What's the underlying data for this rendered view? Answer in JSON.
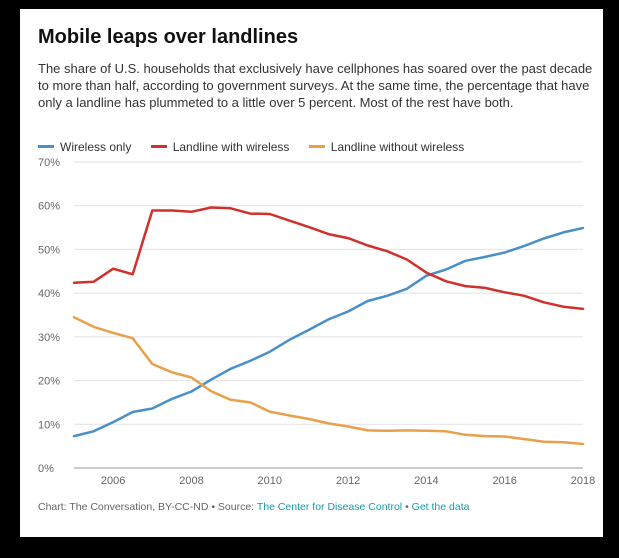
{
  "title": "Mobile leaps over landlines",
  "subtitle": "The share of U.S. households that exclusively have cellphones has soared over the past decade to more than half, according to government surveys. At the same time, the percentage that have only a landline has plummeted to a little over 5 percent. Most of the rest have both.",
  "footer": {
    "credit": "Chart: The Conversation, BY-CC-ND • Source: ",
    "source_link": "The Center for Disease Control",
    "separator": " • ",
    "data_link": "Get the data"
  },
  "chart_data": {
    "type": "line",
    "x_min": 2005,
    "x_max": 2018,
    "ylim": [
      0,
      70
    ],
    "y_ticks": [
      "0%",
      "10%",
      "20%",
      "30%",
      "40%",
      "50%",
      "60%",
      "70%"
    ],
    "x_ticks": [
      "2006",
      "2008",
      "2010",
      "2012",
      "2014",
      "2016",
      "2018"
    ],
    "grid": true,
    "legend_position": "top-left",
    "series": [
      {
        "name": "Wireless only",
        "color": "#4a90c8",
        "points": [
          [
            2005.0,
            7.3
          ],
          [
            2005.5,
            8.4
          ],
          [
            2006.0,
            10.5
          ],
          [
            2006.5,
            12.8
          ],
          [
            2007.0,
            13.6
          ],
          [
            2007.5,
            15.8
          ],
          [
            2008.0,
            17.5
          ],
          [
            2008.5,
            20.2
          ],
          [
            2009.0,
            22.7
          ],
          [
            2009.5,
            24.5
          ],
          [
            2010.0,
            26.6
          ],
          [
            2010.5,
            29.3
          ],
          [
            2011.0,
            31.6
          ],
          [
            2011.5,
            34.0
          ],
          [
            2012.0,
            35.8
          ],
          [
            2012.5,
            38.2
          ],
          [
            2013.0,
            39.4
          ],
          [
            2013.5,
            41.0
          ],
          [
            2014.0,
            44.0
          ],
          [
            2014.5,
            45.4
          ],
          [
            2015.0,
            47.4
          ],
          [
            2015.5,
            48.3
          ],
          [
            2016.0,
            49.3
          ],
          [
            2016.5,
            50.8
          ],
          [
            2017.0,
            52.5
          ],
          [
            2017.5,
            53.9
          ],
          [
            2018.0,
            54.9
          ]
        ]
      },
      {
        "name": "Landline with wireless",
        "color": "#d0312d",
        "points": [
          [
            2005.0,
            42.4
          ],
          [
            2005.5,
            42.6
          ],
          [
            2006.0,
            45.6
          ],
          [
            2006.5,
            44.3
          ],
          [
            2007.0,
            58.9
          ],
          [
            2007.5,
            58.9
          ],
          [
            2008.0,
            58.6
          ],
          [
            2008.5,
            59.6
          ],
          [
            2009.0,
            59.4
          ],
          [
            2009.5,
            58.2
          ],
          [
            2010.0,
            58.1
          ],
          [
            2010.5,
            56.6
          ],
          [
            2011.0,
            55.1
          ],
          [
            2011.5,
            53.5
          ],
          [
            2012.0,
            52.6
          ],
          [
            2012.5,
            50.9
          ],
          [
            2013.0,
            49.6
          ],
          [
            2013.5,
            47.7
          ],
          [
            2014.0,
            44.7
          ],
          [
            2014.5,
            42.7
          ],
          [
            2015.0,
            41.6
          ],
          [
            2015.5,
            41.2
          ],
          [
            2016.0,
            40.2
          ],
          [
            2016.5,
            39.4
          ],
          [
            2017.0,
            37.9
          ],
          [
            2017.5,
            36.9
          ],
          [
            2018.0,
            36.4
          ]
        ]
      },
      {
        "name": "Landline without wireless",
        "color": "#e8a04a",
        "points": [
          [
            2005.0,
            34.5
          ],
          [
            2005.5,
            32.3
          ],
          [
            2006.0,
            30.9
          ],
          [
            2006.5,
            29.7
          ],
          [
            2007.0,
            23.8
          ],
          [
            2007.5,
            21.9
          ],
          [
            2008.0,
            20.7
          ],
          [
            2008.5,
            17.6
          ],
          [
            2009.0,
            15.6
          ],
          [
            2009.5,
            15.0
          ],
          [
            2010.0,
            12.9
          ],
          [
            2010.5,
            12.0
          ],
          [
            2011.0,
            11.2
          ],
          [
            2011.5,
            10.2
          ],
          [
            2012.0,
            9.5
          ],
          [
            2012.5,
            8.6
          ],
          [
            2013.0,
            8.5
          ],
          [
            2013.5,
            8.6
          ],
          [
            2014.0,
            8.5
          ],
          [
            2014.5,
            8.4
          ],
          [
            2015.0,
            7.6
          ],
          [
            2015.5,
            7.3
          ],
          [
            2016.0,
            7.2
          ],
          [
            2016.5,
            6.6
          ],
          [
            2017.0,
            6.0
          ],
          [
            2017.5,
            5.9
          ],
          [
            2018.0,
            5.5
          ]
        ]
      }
    ]
  }
}
